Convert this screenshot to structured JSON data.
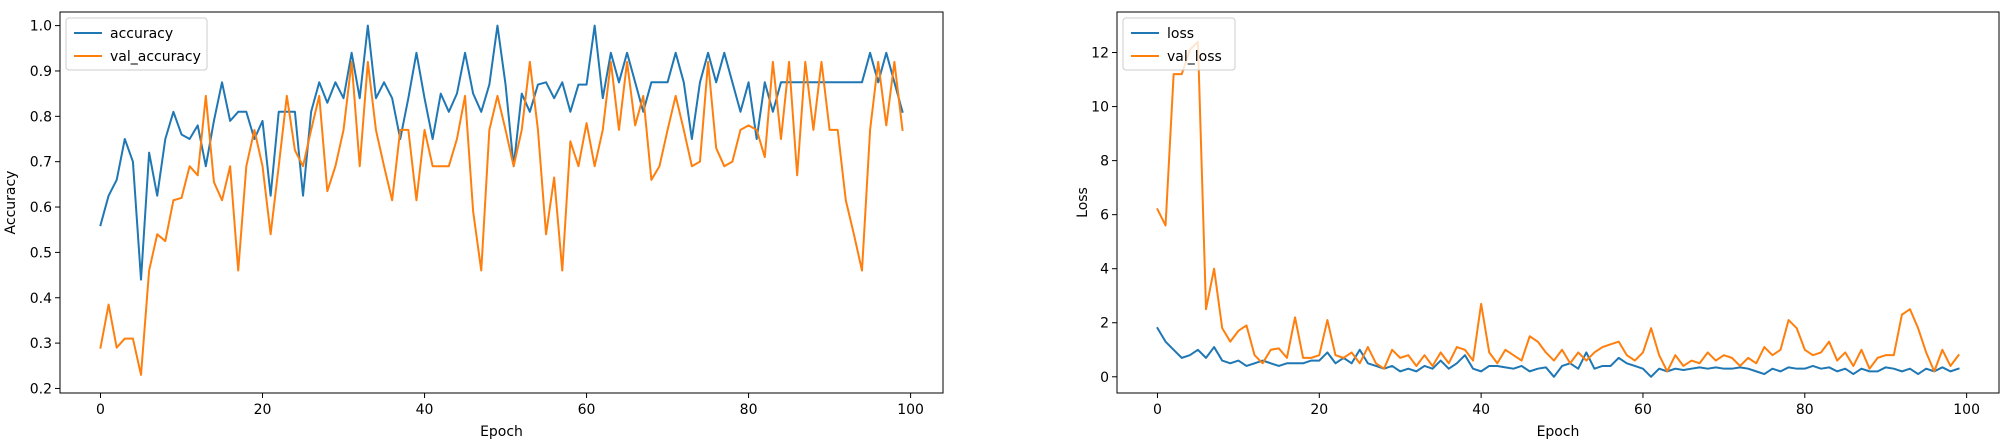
{
  "chart_data": [
    {
      "type": "line",
      "xlabel": "Epoch",
      "ylabel": "Accuracy",
      "xlim": [
        -5,
        104
      ],
      "ylim": [
        0.19,
        1.03
      ],
      "xticks": [
        0,
        20,
        40,
        60,
        80,
        100
      ],
      "yticks": [
        0.2,
        0.3,
        0.4,
        0.5,
        0.6,
        0.7,
        0.8,
        0.9,
        1.0
      ],
      "ytick_labels": [
        "0.2",
        "0.3",
        "0.4",
        "0.5",
        "0.6",
        "0.7",
        "0.8",
        "0.9",
        "1.0"
      ],
      "legend_position": "upper-left",
      "series": [
        {
          "name": "accuracy",
          "color": "#1f77b4",
          "values": [
            0.56,
            0.625,
            0.66,
            0.75,
            0.7,
            0.44,
            0.72,
            0.625,
            0.75,
            0.81,
            0.76,
            0.75,
            0.78,
            0.69,
            0.79,
            0.875,
            0.79,
            0.81,
            0.81,
            0.75,
            0.79,
            0.625,
            0.81,
            0.81,
            0.81,
            0.625,
            0.81,
            0.875,
            0.83,
            0.875,
            0.84,
            0.94,
            0.84,
            1.0,
            0.84,
            0.875,
            0.84,
            0.75,
            0.84,
            0.94,
            0.84,
            0.75,
            0.85,
            0.81,
            0.85,
            0.94,
            0.85,
            0.81,
            0.87,
            1.0,
            0.87,
            0.69,
            0.85,
            0.81,
            0.87,
            0.875,
            0.84,
            0.875,
            0.81,
            0.87,
            0.87,
            1.0,
            0.84,
            0.94,
            0.875,
            0.94,
            0.875,
            0.81,
            0.875,
            0.875,
            0.875,
            0.94,
            0.875,
            0.75,
            0.875,
            0.94,
            0.875,
            0.94,
            0.875,
            0.81,
            0.875,
            0.75,
            0.875,
            0.81,
            0.875,
            0.875,
            0.875,
            0.875,
            0.875,
            0.875,
            0.875,
            0.875,
            0.875,
            0.875,
            0.875,
            0.94,
            0.875,
            0.94,
            0.875,
            0.81
          ]
        },
        {
          "name": "val_accuracy",
          "color": "#ff7f0e",
          "values": [
            0.29,
            0.385,
            0.29,
            0.31,
            0.31,
            0.23,
            0.46,
            0.54,
            0.525,
            0.615,
            0.62,
            0.69,
            0.67,
            0.845,
            0.655,
            0.615,
            0.69,
            0.46,
            0.69,
            0.77,
            0.69,
            0.54,
            0.69,
            0.845,
            0.725,
            0.69,
            0.77,
            0.845,
            0.635,
            0.69,
            0.77,
            0.92,
            0.69,
            0.92,
            0.77,
            0.69,
            0.615,
            0.77,
            0.77,
            0.615,
            0.77,
            0.69,
            0.69,
            0.69,
            0.75,
            0.845,
            0.59,
            0.46,
            0.77,
            0.845,
            0.77,
            0.69,
            0.77,
            0.92,
            0.77,
            0.54,
            0.665,
            0.46,
            0.745,
            0.69,
            0.785,
            0.69,
            0.77,
            0.92,
            0.77,
            0.92,
            0.78,
            0.845,
            0.66,
            0.69,
            0.77,
            0.845,
            0.77,
            0.69,
            0.7,
            0.92,
            0.73,
            0.69,
            0.7,
            0.77,
            0.78,
            0.77,
            0.71,
            0.92,
            0.75,
            0.92,
            0.67,
            0.92,
            0.77,
            0.92,
            0.77,
            0.77,
            0.615,
            0.54,
            0.46,
            0.77,
            0.92,
            0.78,
            0.92,
            0.77
          ]
        }
      ]
    },
    {
      "type": "line",
      "xlabel": "Epoch",
      "ylabel": "Loss",
      "xlim": [
        -5,
        104
      ],
      "ylim": [
        -0.6,
        13.5
      ],
      "xticks": [
        0,
        20,
        40,
        60,
        80,
        100
      ],
      "yticks": [
        0,
        2,
        4,
        6,
        8,
        10,
        12
      ],
      "ytick_labels": [
        "0",
        "2",
        "4",
        "6",
        "8",
        "10",
        "12"
      ],
      "legend_position": "upper-left",
      "series": [
        {
          "name": "loss",
          "color": "#1f77b4",
          "values": [
            1.8,
            1.3,
            1.0,
            0.7,
            0.8,
            1.0,
            0.7,
            1.1,
            0.6,
            0.5,
            0.6,
            0.4,
            0.5,
            0.6,
            0.5,
            0.4,
            0.5,
            0.5,
            0.5,
            0.6,
            0.6,
            0.9,
            0.5,
            0.7,
            0.5,
            1.0,
            0.5,
            0.4,
            0.3,
            0.4,
            0.2,
            0.3,
            0.2,
            0.4,
            0.3,
            0.6,
            0.3,
            0.5,
            0.8,
            0.3,
            0.2,
            0.4,
            0.4,
            0.35,
            0.3,
            0.4,
            0.2,
            0.3,
            0.35,
            0.0,
            0.4,
            0.5,
            0.3,
            0.9,
            0.3,
            0.4,
            0.4,
            0.7,
            0.5,
            0.4,
            0.3,
            0.0,
            0.3,
            0.2,
            0.3,
            0.25,
            0.3,
            0.35,
            0.3,
            0.35,
            0.3,
            0.3,
            0.35,
            0.3,
            0.2,
            0.1,
            0.3,
            0.2,
            0.35,
            0.3,
            0.3,
            0.4,
            0.3,
            0.35,
            0.2,
            0.3,
            0.1,
            0.3,
            0.2,
            0.2,
            0.35,
            0.3,
            0.2,
            0.3,
            0.1,
            0.3,
            0.2,
            0.35,
            0.2,
            0.3
          ]
        },
        {
          "name": "val_loss",
          "color": "#ff7f0e",
          "values": [
            6.2,
            5.6,
            11.2,
            11.2,
            12.1,
            12.4,
            2.5,
            4.0,
            1.8,
            1.3,
            1.7,
            1.9,
            0.8,
            0.5,
            1.0,
            1.05,
            0.7,
            2.2,
            0.7,
            0.7,
            0.8,
            2.1,
            0.8,
            0.7,
            0.9,
            0.5,
            1.1,
            0.5,
            0.3,
            1.0,
            0.7,
            0.8,
            0.4,
            0.8,
            0.4,
            0.9,
            0.5,
            1.1,
            1.0,
            0.6,
            2.7,
            0.9,
            0.5,
            1.0,
            0.8,
            0.6,
            1.5,
            1.3,
            0.9,
            0.6,
            1.0,
            0.5,
            0.9,
            0.6,
            0.9,
            1.1,
            1.2,
            1.3,
            0.8,
            0.6,
            0.9,
            1.8,
            0.8,
            0.2,
            0.8,
            0.4,
            0.6,
            0.5,
            0.9,
            0.6,
            0.8,
            0.7,
            0.4,
            0.7,
            0.5,
            1.1,
            0.8,
            1.0,
            2.1,
            1.8,
            1.0,
            0.8,
            0.9,
            1.3,
            0.6,
            0.9,
            0.4,
            1.0,
            0.3,
            0.7,
            0.8,
            0.8,
            2.3,
            2.5,
            1.8,
            0.9,
            0.2,
            1.0,
            0.4,
            0.8
          ]
        }
      ]
    }
  ]
}
